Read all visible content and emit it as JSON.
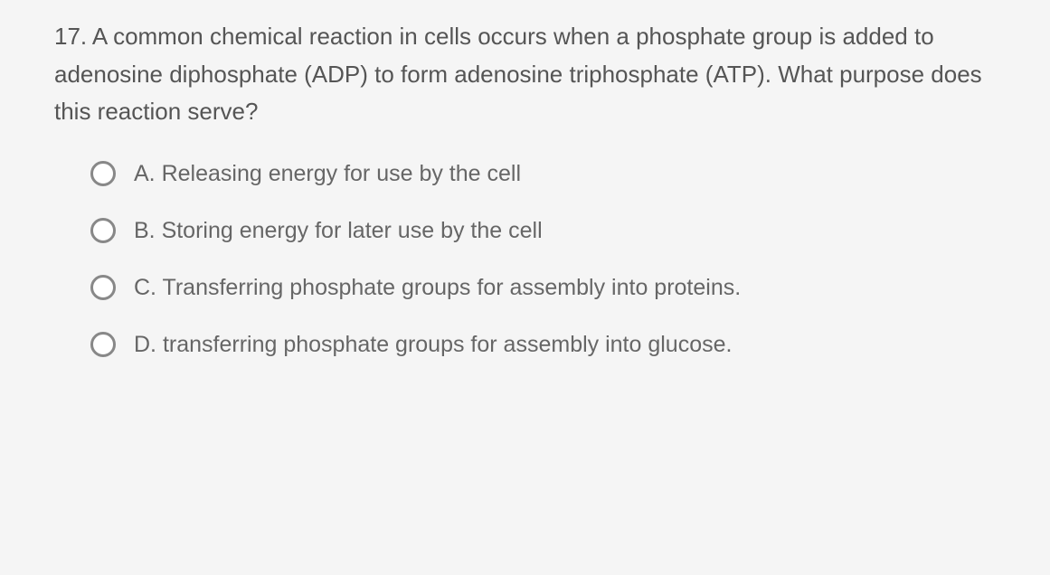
{
  "question": {
    "number": "17.",
    "text": "17. A common chemical reaction in cells occurs when a phosphate group is added to adenosine diphosphate (ADP) to form adenosine triphosphate (ATP). What purpose does this reaction serve?"
  },
  "options": [
    {
      "letter": "A",
      "text": "A. Releasing energy for use by the cell"
    },
    {
      "letter": "B",
      "text": "B. Storing energy for later use by the cell"
    },
    {
      "letter": "C",
      "text": "C. Transferring phosphate groups for assembly into proteins."
    },
    {
      "letter": "D",
      "text": "D. transferring phosphate groups for assembly into glucose."
    }
  ],
  "colors": {
    "background": "#f5f5f5",
    "text": "#555555",
    "option_text": "#666666",
    "radio_border": "#888888",
    "radio_fill": "#ffffff"
  },
  "typography": {
    "question_fontsize": 26,
    "option_fontsize": 25,
    "font_family": "Arial"
  }
}
